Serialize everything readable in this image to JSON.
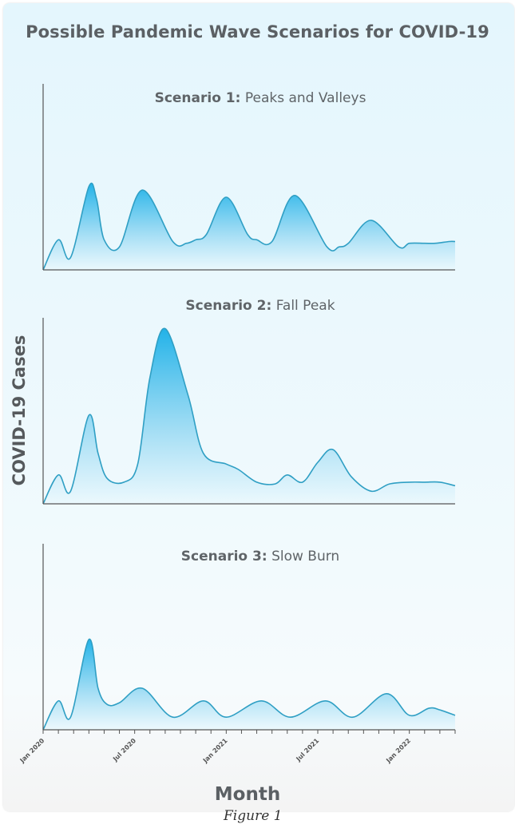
{
  "title": "Possible Pandemic Wave Scenarios for COVID-19",
  "ylabel": "COVID-19 Cases",
  "xlabel": "Month",
  "caption": "Figure 1",
  "colors": {
    "stroke": "#2f9fc4",
    "fill_top": "#22b2e8",
    "fill_bottom": "#eaf8fd",
    "axis": "#555555"
  },
  "chart_data": [
    {
      "type": "area",
      "title_bold": "Scenario 1:",
      "title_rest": " Peaks and Valleys",
      "x_unit": "months since Jan 2020",
      "x": [
        0,
        1,
        1.8,
        3,
        3.5,
        4,
        5,
        6.5,
        8.5,
        9.4,
        10,
        10.7,
        12,
        13.4,
        14,
        15,
        16.5,
        18.6,
        19.4,
        20,
        21.5,
        23.3,
        24,
        25,
        25.7,
        26.6,
        27
      ],
      "values": [
        0,
        17,
        7,
        47,
        40,
        17,
        13,
        45,
        16,
        15,
        17,
        20,
        41,
        20,
        17,
        16,
        42,
        13,
        13,
        15,
        28,
        13,
        15,
        15,
        15,
        16,
        16
      ],
      "xlim": [
        0,
        27
      ],
      "ylim": [
        0,
        105
      ]
    },
    {
      "type": "area",
      "title_bold": "Scenario 2:",
      "title_rest": " Fall Peak",
      "x_unit": "months since Jan 2020",
      "x": [
        0,
        1,
        1.8,
        3,
        3.6,
        4.2,
        5.3,
        6.2,
        7,
        8,
        9.5,
        10.5,
        12,
        12.8,
        14,
        15.2,
        16,
        17,
        18,
        19,
        20.2,
        21.5,
        22.7,
        24,
        25,
        26,
        27
      ],
      "values": [
        0,
        16,
        7,
        49,
        28,
        14,
        12,
        22,
        70,
        97,
        60,
        28,
        22,
        19,
        12,
        11,
        16,
        12,
        23,
        30,
        15,
        7,
        11,
        12,
        12,
        12,
        10
      ],
      "xlim": [
        0,
        27
      ],
      "ylim": [
        0,
        103
      ]
    },
    {
      "type": "area",
      "title_bold": "Scenario 3:",
      "title_rest": " Slow Burn",
      "x_unit": "months since Jan 2020",
      "x": [
        0,
        1,
        1.8,
        3,
        3.6,
        4.2,
        5,
        6.5,
        8.5,
        10.5,
        12,
        14.3,
        16.2,
        18.5,
        20.3,
        22.5,
        24,
        25.3,
        26,
        27
      ],
      "values": [
        0,
        16,
        7,
        50,
        23,
        14,
        15,
        23,
        7,
        16,
        7,
        16,
        7,
        16,
        7,
        20,
        8,
        12,
        11,
        8
      ],
      "xlim": [
        0,
        27
      ],
      "ylim": [
        0,
        103
      ]
    }
  ],
  "x_ticks": [
    "Jan 2020",
    "Jul 2020",
    "Jan 2021",
    "Jul 2021",
    "Jan 2022"
  ]
}
